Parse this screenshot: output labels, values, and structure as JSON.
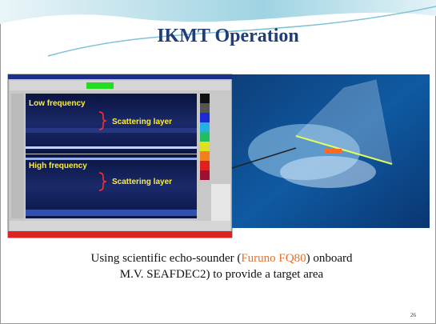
{
  "slide": {
    "title": "IKMT Operation",
    "echogram": {
      "panels": [
        {
          "label": "Low frequency",
          "annotation": "Scattering layer"
        },
        {
          "label": "High frequency",
          "annotation": "Scattering layer"
        }
      ]
    },
    "caption": {
      "line1": {
        "before": "Using scientific echo-sounder (",
        "highlight": "Furuno FQ80",
        "after": ") onboard"
      },
      "line2": "M.V. SEAFDEC2) to provide a target area"
    },
    "page_number": "26"
  }
}
